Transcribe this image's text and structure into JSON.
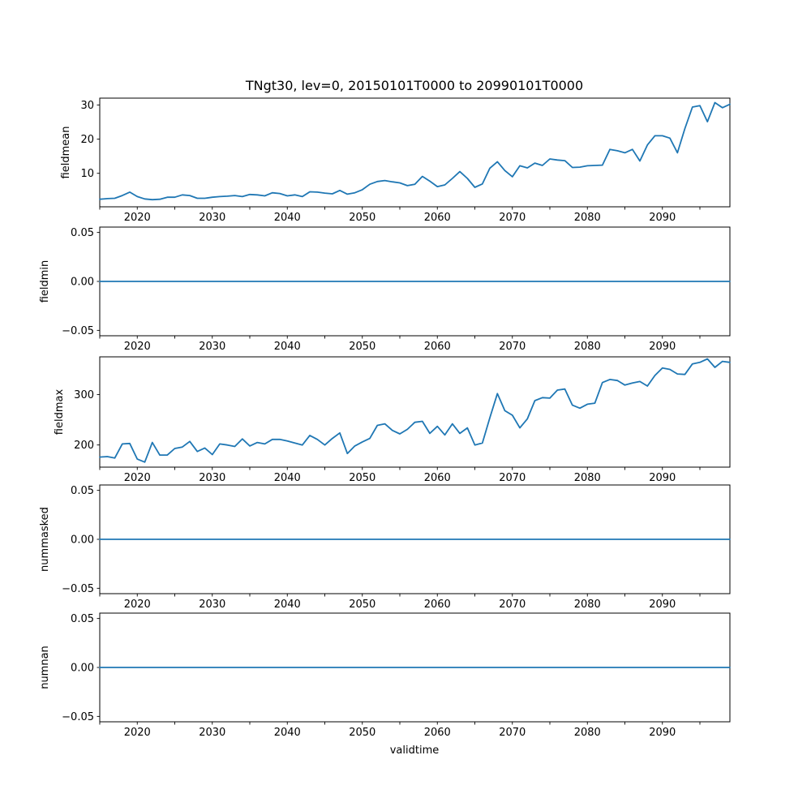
{
  "figure": {
    "background": "#ffffff",
    "spine_color": "#000000"
  },
  "chart_data": {
    "type": "line",
    "title": "TNgt30, lev=0, 20150101T0000 to 20990101T0000",
    "xlabel": "validtime",
    "x_start": 2015,
    "x_step": 1,
    "n_points": 85,
    "xlim": [
      2015,
      2099
    ],
    "xticks": {
      "minor_step": 5,
      "labeled": [
        2020,
        2030,
        2040,
        2050,
        2060,
        2070,
        2080,
        2090
      ]
    },
    "line_color": "#1f77b4",
    "grid": false,
    "legend": null,
    "subplots": [
      {
        "ylabel": "fieldmean",
        "ylim": [
          0.2,
          32.0
        ],
        "yticks": [
          10,
          20,
          30
        ],
        "ytick_labels": [
          "10",
          "20",
          "30"
        ],
        "values": [
          2.4,
          2.6,
          2.7,
          3.5,
          4.5,
          3.2,
          2.5,
          2.3,
          2.4,
          3.0,
          3.0,
          3.7,
          3.5,
          2.7,
          2.7,
          3.0,
          3.2,
          3.3,
          3.5,
          3.2,
          3.8,
          3.7,
          3.4,
          4.3,
          4.1,
          3.4,
          3.7,
          3.2,
          4.6,
          4.5,
          4.2,
          4.0,
          5.0,
          3.9,
          4.3,
          5.2,
          6.8,
          7.6,
          7.9,
          7.5,
          7.2,
          6.4,
          6.8,
          9.1,
          7.7,
          6.1,
          6.6,
          8.5,
          10.5,
          8.5,
          5.9,
          6.9,
          11.5,
          13.4,
          10.8,
          9.0,
          12.2,
          11.6,
          13.0,
          12.3,
          14.2,
          13.9,
          13.7,
          11.7,
          11.8,
          12.2,
          12.3,
          12.4,
          17.0,
          16.6,
          16.0,
          17.0,
          13.6,
          18.3,
          21.0,
          21.0,
          20.3,
          16.0,
          23.1,
          29.4,
          29.8,
          25.1,
          30.7,
          29.2,
          30.2
        ]
      },
      {
        "ylabel": "fieldmin",
        "ylim": [
          -0.0555,
          0.0555
        ],
        "yticks": [
          -0.05,
          0,
          0.05
        ],
        "ytick_labels": [
          "−0.05",
          "0.00",
          "0.05"
        ],
        "constant_value": 0
      },
      {
        "ylabel": "fieldmax",
        "ylim": [
          156,
          375
        ],
        "yticks": [
          200,
          300
        ],
        "ytick_labels": [
          "200",
          "300"
        ],
        "values": [
          176,
          177,
          174,
          202,
          203,
          172,
          166,
          205,
          180,
          180,
          193,
          196,
          207,
          187,
          194,
          181,
          202,
          200,
          197,
          212,
          198,
          205,
          202,
          211,
          211,
          208,
          204,
          200,
          219,
          211,
          200,
          213,
          224,
          183,
          198,
          206,
          213,
          239,
          242,
          229,
          222,
          231,
          245,
          247,
          223,
          237,
          220,
          242,
          223,
          234,
          200,
          204,
          254,
          302,
          268,
          259,
          234,
          252,
          288,
          294,
          293,
          309,
          311,
          279,
          273,
          281,
          283,
          324,
          330,
          328,
          319,
          323,
          326,
          317,
          338,
          353,
          350,
          341,
          340,
          361,
          364,
          371,
          354,
          366,
          364
        ]
      },
      {
        "ylabel": "nummasked",
        "ylim": [
          -0.0555,
          0.0555
        ],
        "yticks": [
          -0.05,
          0,
          0.05
        ],
        "ytick_labels": [
          "−0.05",
          "0.00",
          "0.05"
        ],
        "constant_value": 0
      },
      {
        "ylabel": "numnan",
        "ylim": [
          -0.0555,
          0.0555
        ],
        "yticks": [
          -0.05,
          0,
          0.05
        ],
        "ytick_labels": [
          "−0.05",
          "0.00",
          "0.05"
        ],
        "constant_value": 0
      }
    ]
  }
}
